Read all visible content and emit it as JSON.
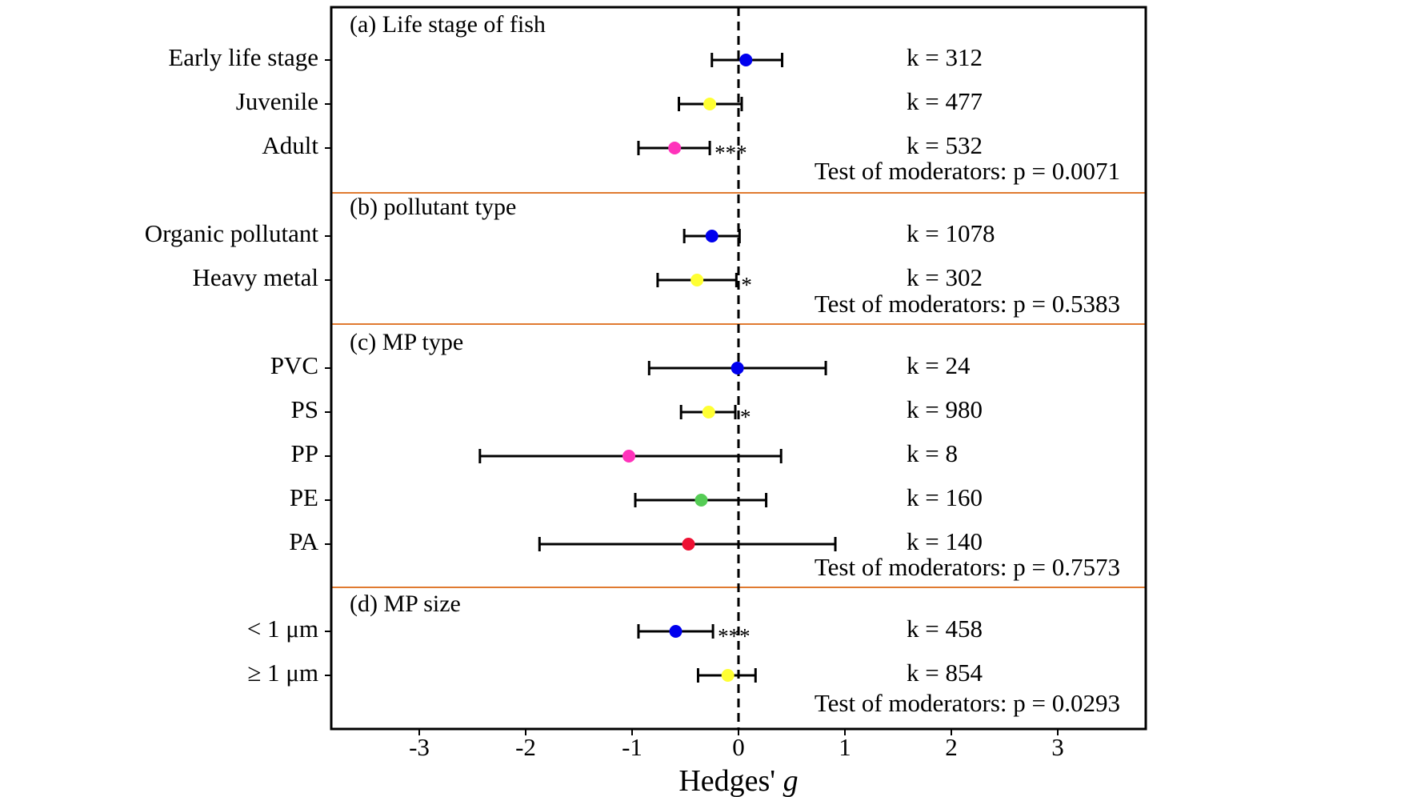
{
  "chart_data": {
    "type": "forest",
    "xlabel_main": "Hedges'",
    "xlabel_italic": "g",
    "xlim": [
      -3.8,
      3.8
    ],
    "xticks": [
      -3,
      -2,
      -1,
      0,
      1,
      2,
      3
    ],
    "xtick_labels": [
      "-3",
      "-2",
      "-1",
      "0",
      "1",
      "2",
      "3"
    ],
    "reference_line": 0,
    "panels": [
      {
        "title": "(a) Life stage of fish",
        "moderator_test": "Test of moderators: p = 0.0071",
        "rows": [
          {
            "label": "Early life stage",
            "estimate": 0.07,
            "ci": [
              -0.25,
              0.41
            ],
            "k_label": "k = 312",
            "color": "#0000ee",
            "sig": ""
          },
          {
            "label": "Juvenile",
            "estimate": -0.27,
            "ci": [
              -0.56,
              0.03
            ],
            "k_label": "k = 477",
            "color": "#ffff33",
            "sig": ""
          },
          {
            "label": "Adult",
            "estimate": -0.6,
            "ci": [
              -0.94,
              -0.27
            ],
            "k_label": "k = 532",
            "color": "#ff33bb",
            "sig": "***"
          }
        ]
      },
      {
        "title": "(b) pollutant type",
        "moderator_test": "Test of moderators: p = 0.5383",
        "rows": [
          {
            "label": "Organic pollutant",
            "estimate": -0.25,
            "ci": [
              -0.51,
              0.01
            ],
            "k_label": "k = 1078",
            "color": "#0000ee",
            "sig": ""
          },
          {
            "label": "Heavy metal",
            "estimate": -0.39,
            "ci": [
              -0.76,
              -0.02
            ],
            "k_label": "k = 302",
            "color": "#ffff33",
            "sig": "*"
          }
        ]
      },
      {
        "title": "(c) MP type",
        "moderator_test": "Test of moderators: p = 0.7573",
        "rows": [
          {
            "label": "PVC",
            "estimate": -0.01,
            "ci": [
              -0.84,
              0.82
            ],
            "k_label": "k = 24",
            "color": "#0000ee",
            "sig": ""
          },
          {
            "label": "PS",
            "estimate": -0.28,
            "ci": [
              -0.54,
              -0.03
            ],
            "k_label": "k = 980",
            "color": "#ffff33",
            "sig": "*"
          },
          {
            "label": "PP",
            "estimate": -1.03,
            "ci": [
              -2.43,
              0.4
            ],
            "k_label": "k = 8",
            "color": "#ff33bb",
            "sig": ""
          },
          {
            "label": "PE",
            "estimate": -0.35,
            "ci": [
              -0.97,
              0.26
            ],
            "k_label": "k = 160",
            "color": "#55cc55",
            "sig": ""
          },
          {
            "label": "PA",
            "estimate": -0.47,
            "ci": [
              -1.87,
              0.91
            ],
            "k_label": "k = 140",
            "color": "#ee1133",
            "sig": ""
          }
        ]
      },
      {
        "title": "(d) MP size",
        "moderator_test": "Test of moderators: p = 0.0293",
        "rows": [
          {
            "label": "< 1 μm",
            "estimate": -0.59,
            "ci": [
              -0.94,
              -0.24
            ],
            "k_label": "k = 458",
            "color": "#0000ee",
            "sig": "***"
          },
          {
            "label": "≥ 1 μm",
            "estimate": -0.1,
            "ci": [
              -0.38,
              0.16
            ],
            "k_label": "k = 854",
            "color": "#ffff33",
            "sig": ""
          }
        ]
      }
    ]
  },
  "colors": {
    "frame": "#000000",
    "separator": "#e07a30",
    "errorbar": "#000000"
  }
}
